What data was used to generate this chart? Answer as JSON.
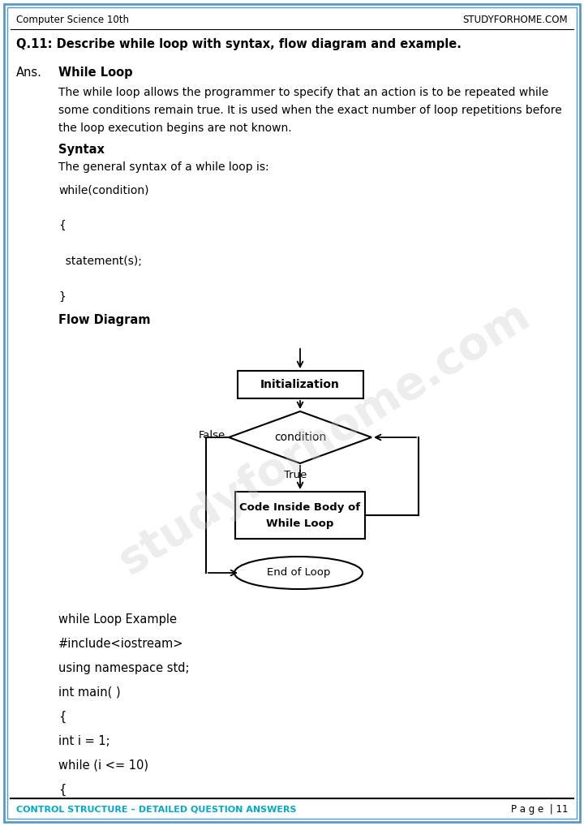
{
  "page_title_left": "Computer Science 10th",
  "page_title_right": "STUDYFORHOME.COM",
  "footer_left": "CONTROL STRUCTURE – DETAILED QUESTION ANSWERS",
  "footer_right": "P a g e  | 11",
  "footer_left_color": "#00aacc",
  "border_color": "#5599cc",
  "question": "Q.11: Describe while loop with syntax, flow diagram and example.",
  "ans_label": "Ans.",
  "ans_title": "While Loop",
  "para1_line1": "The while loop allows the programmer to specify that an action is to be repeated while",
  "para1_line2": "some conditions remain true. It is used when the exact number of loop repetitions before",
  "para1_line3": "the loop execution begins are not known.",
  "syntax_label": "Syntax",
  "syntax_desc": "The general syntax of a while loop is:",
  "syntax_code_lines": [
    "while(condition)",
    "",
    "{",
    "",
    "  statement(s);",
    "",
    "}"
  ],
  "flowdiag_label": "Flow Diagram",
  "code_lines": [
    "while Loop Example",
    "#include<iostream>",
    "using namespace std;",
    "int main( )",
    "{",
    "int i = 1;",
    "while (i <= 10)",
    "{"
  ],
  "watermark": "studyforhome.com",
  "bg_color": "#ffffff",
  "text_color": "#000000"
}
